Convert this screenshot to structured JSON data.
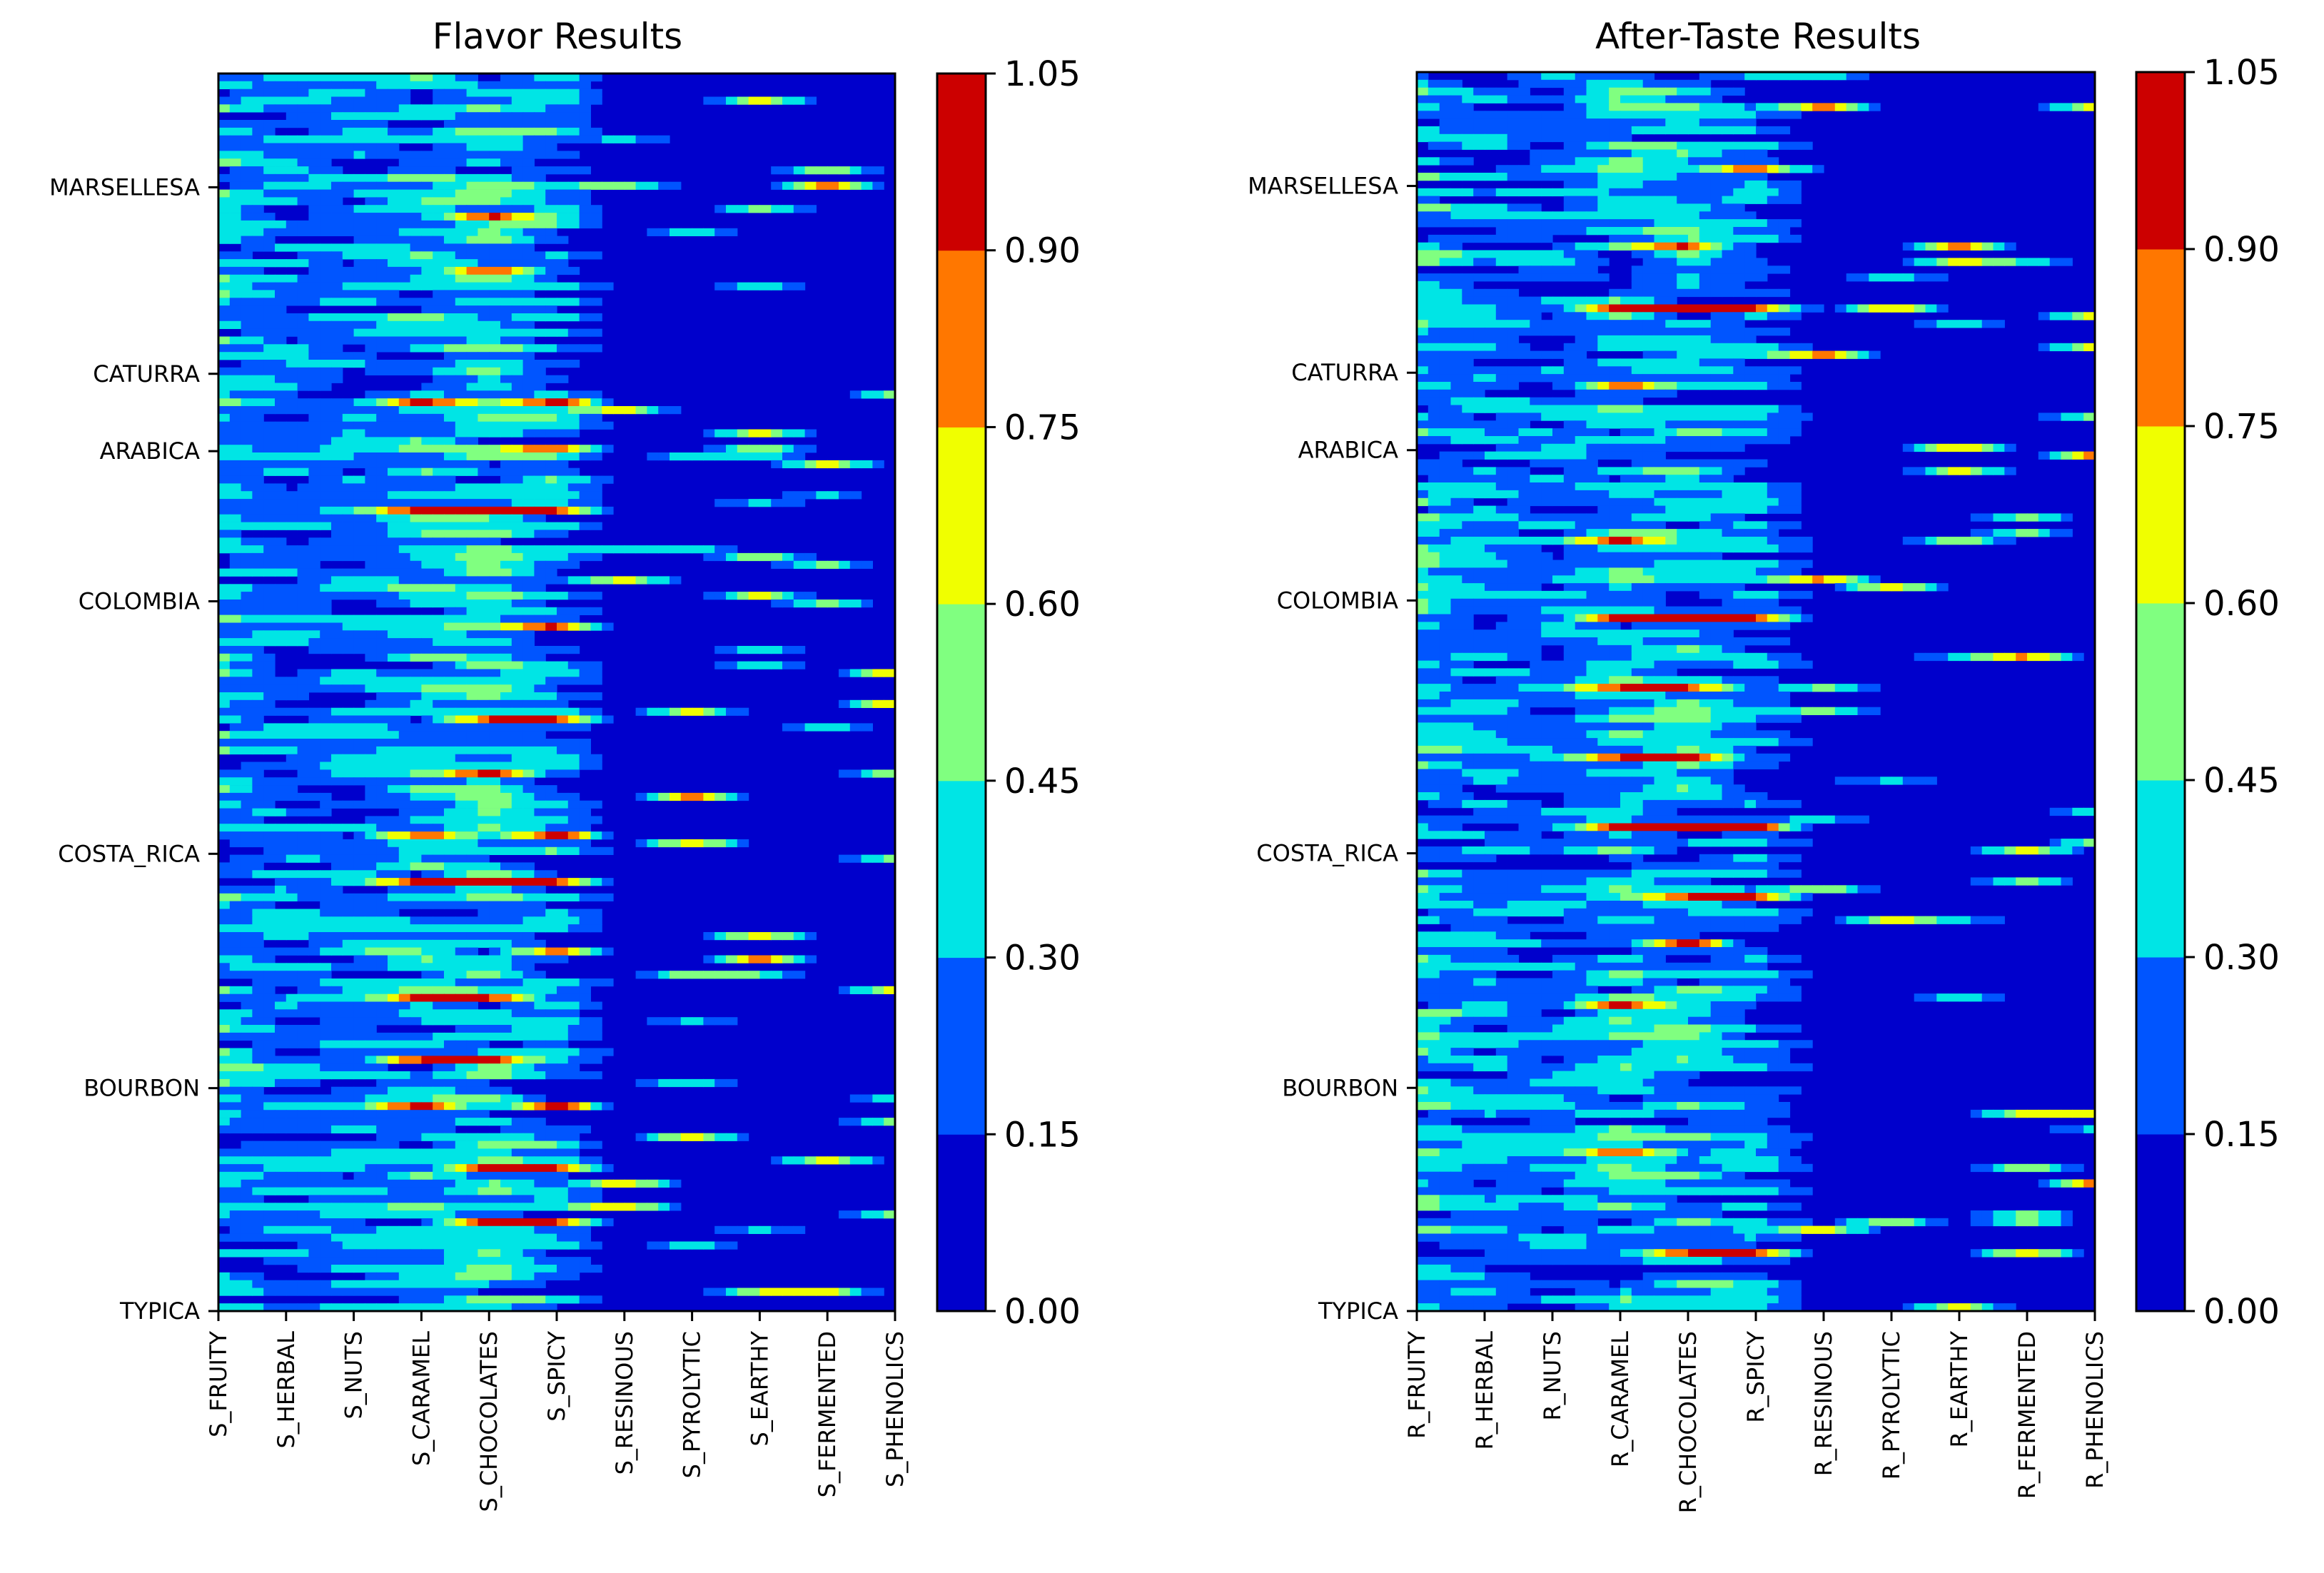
{
  "chart_data": [
    {
      "type": "heatmap",
      "title": "Flavor Results",
      "x_categories": [
        "S_FRUITY",
        "S_HERBAL",
        "S_NUTS",
        "S_CARAMEL",
        "S_CHOCOLATES",
        "S_SPICY",
        "S_RESINOUS",
        "S_PYROLYTIC",
        "S_EARTHY",
        "S_FERMENTED",
        "S_PHENOLICS"
      ],
      "y_tick_labels": [
        "MARSELLESA",
        "CATURRA",
        "ARABICA",
        "COLOMBIA",
        "COSTA_RICA",
        "BOURBON",
        "TYPICA"
      ],
      "y_tick_values": [
        50,
        132,
        166,
        232,
        343,
        446,
        544
      ],
      "ylim": [
        544,
        0
      ],
      "rows": 160,
      "colorbar": {
        "levels": [
          0.0,
          0.15,
          0.3,
          0.45,
          0.6,
          0.75,
          0.9,
          1.05
        ],
        "tick_labels": [
          "0.00",
          "0.15",
          "0.30",
          "0.45",
          "0.60",
          "0.75",
          "0.90",
          "1.05"
        ],
        "colors": [
          "#0000cc",
          "#0055ff",
          "#00e5e5",
          "#80ff80",
          "#f0ff00",
          "#ff7700",
          "#cc0000"
        ]
      },
      "column_profile": [
        0.3,
        0.23,
        0.25,
        0.29,
        0.33,
        0.27,
        0.04,
        0.03,
        0.03,
        0.02,
        0.0
      ],
      "hotspot_rows": [
        18,
        25,
        42,
        48,
        56,
        71,
        83,
        90,
        98,
        104,
        113,
        119,
        127,
        133,
        141,
        148
      ]
    },
    {
      "type": "heatmap",
      "title": "After-Taste Results",
      "x_categories": [
        "R_FRUITY",
        "R_HERBAL",
        "R_NUTS",
        "R_CARAMEL",
        "R_CHOCOLATES",
        "R_SPICY",
        "R_RESINOUS",
        "R_PYROLYTIC",
        "R_EARTHY",
        "R_FERMENTED",
        "R_PHENOLICS"
      ],
      "y_tick_labels": [
        "MARSELLESA",
        "CATURRA",
        "ARABICA",
        "COLOMBIA",
        "COSTA_RICA",
        "BOURBON",
        "TYPICA"
      ],
      "y_tick_values": [
        50,
        132,
        166,
        232,
        343,
        446,
        544
      ],
      "ylim": [
        544,
        0
      ],
      "rows": 160,
      "colorbar": {
        "levels": [
          0.0,
          0.15,
          0.3,
          0.45,
          0.6,
          0.75,
          0.9,
          1.05
        ],
        "tick_labels": [
          "0.00",
          "0.15",
          "0.30",
          "0.45",
          "0.60",
          "0.75",
          "0.90",
          "1.05"
        ],
        "colors": [
          "#0000cc",
          "#0055ff",
          "#00e5e5",
          "#80ff80",
          "#f0ff00",
          "#ff7700",
          "#cc0000"
        ]
      },
      "column_profile": [
        0.3,
        0.24,
        0.22,
        0.3,
        0.3,
        0.24,
        0.06,
        0.03,
        0.04,
        0.02,
        0.0
      ],
      "hotspot_rows": [
        12,
        22,
        30,
        40,
        52,
        60,
        70,
        79,
        88,
        97,
        106,
        112,
        120,
        130,
        139,
        152
      ]
    }
  ]
}
